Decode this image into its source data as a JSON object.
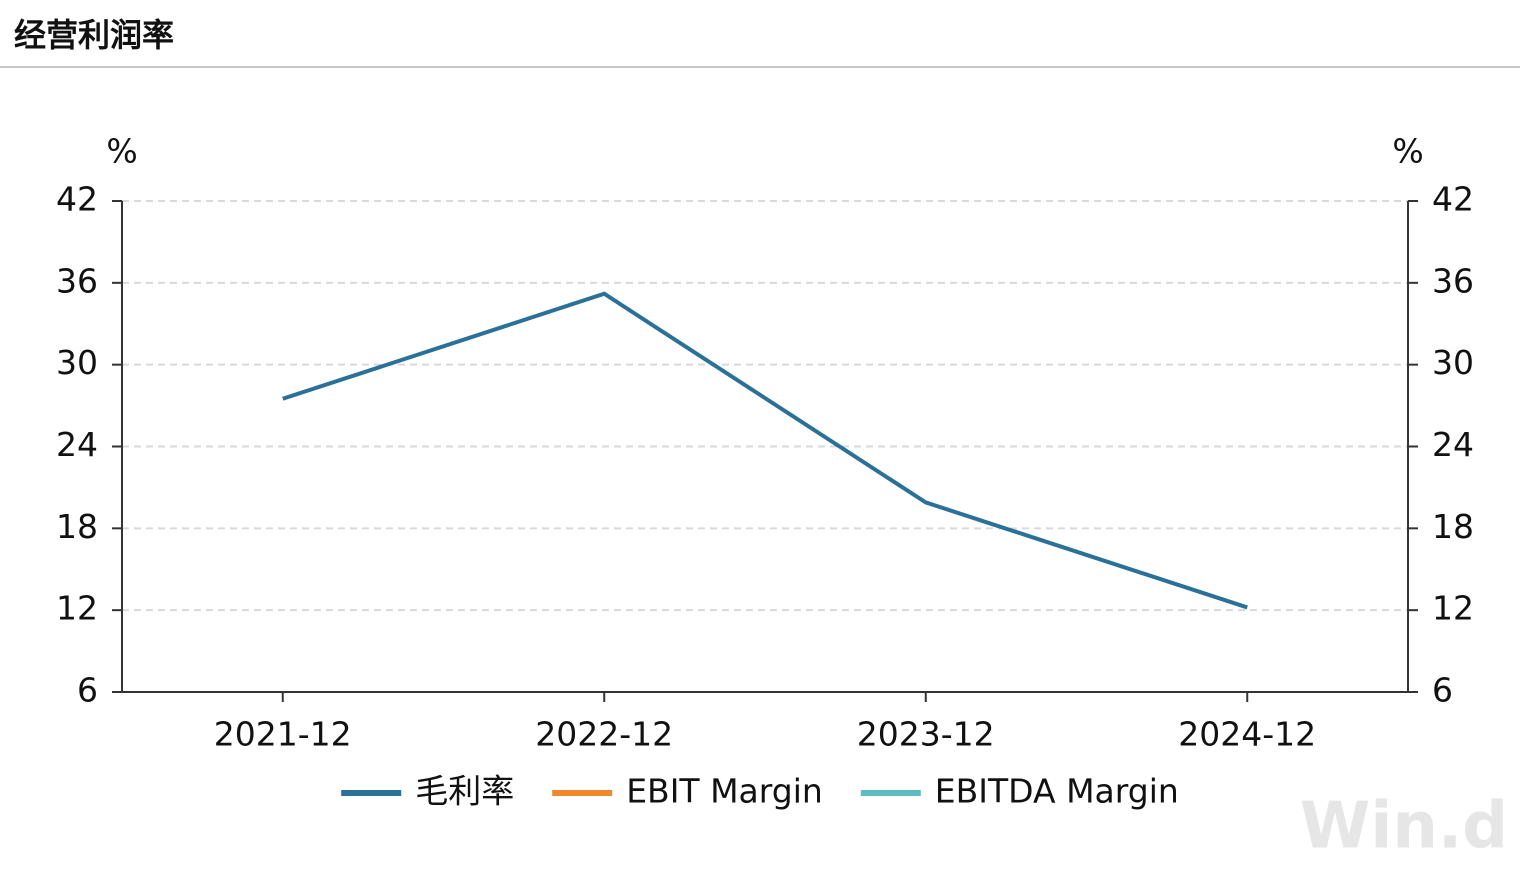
{
  "header": {
    "title": "经营利润率"
  },
  "chart_data": {
    "type": "line",
    "categories": [
      "2021-12",
      "2022-12",
      "2023-12",
      "2024-12"
    ],
    "series": [
      {
        "name": "毛利率",
        "color": "#2a7199",
        "values": [
          27.5,
          35.2,
          19.9,
          12.2
        ]
      },
      {
        "name": "EBIT Margin",
        "color": "#f0892a",
        "values": [
          null,
          null,
          null,
          null
        ]
      },
      {
        "name": "EBITDA Margin",
        "color": "#5dbcc1",
        "values": [
          null,
          null,
          null,
          null
        ]
      }
    ],
    "y_unit": "%",
    "y2_unit": "%",
    "ylim": [
      6,
      42
    ],
    "yticks": [
      6,
      12,
      18,
      24,
      30,
      36,
      42
    ],
    "y2lim": [
      6,
      42
    ],
    "y2ticks": [
      6,
      12,
      18,
      24,
      30,
      36,
      42
    ],
    "grid": true,
    "watermark": "Win.d"
  }
}
